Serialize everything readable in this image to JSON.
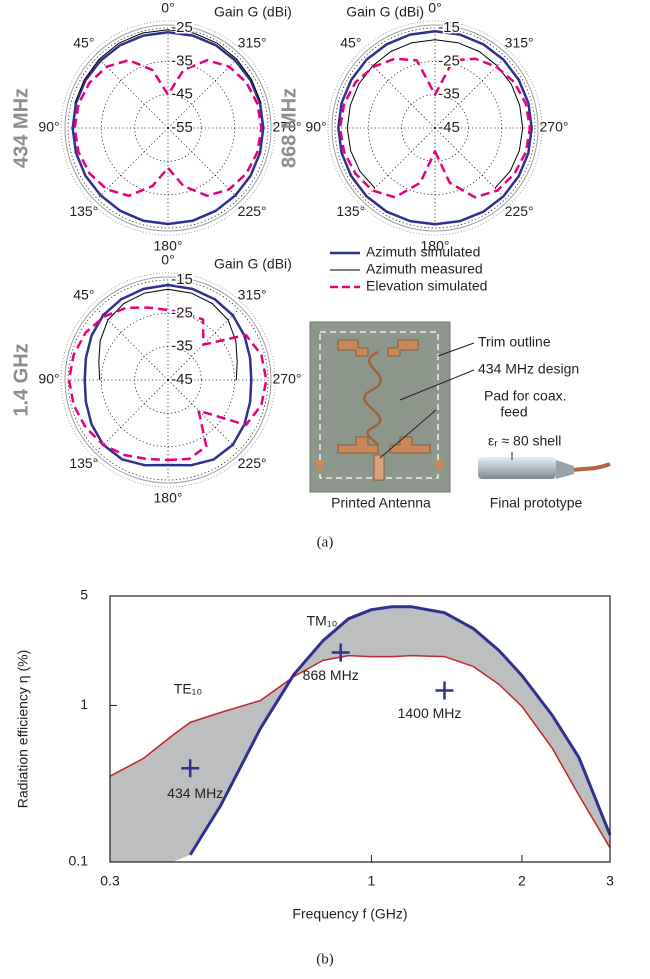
{
  "chart_data": [
    {
      "type": "polar",
      "title": "434 MHz",
      "r_label": "Gain G (dBi)",
      "theta": [
        180,
        195,
        210,
        225,
        240,
        255,
        270,
        285,
        300,
        315,
        330,
        345,
        0,
        15,
        30,
        45,
        60,
        75,
        90,
        105,
        120,
        135,
        150,
        165
      ],
      "rlim": [
        -55,
        -25
      ],
      "rticks": [
        -25,
        -35,
        -45,
        -55
      ],
      "thetaticks": [
        {
          "value": 0,
          "label": "0°"
        },
        {
          "value": 45,
          "label": "45°"
        },
        {
          "value": 90,
          "label": "90°"
        },
        {
          "value": 135,
          "label": "135°"
        },
        {
          "value": 180,
          "label": "180°"
        },
        {
          "value": 225,
          "label": "225°"
        },
        {
          "value": 270,
          "label": "270°"
        },
        {
          "value": 315,
          "label": "315°"
        }
      ],
      "series": [
        {
          "name": "Azimuth simulated",
          "color": "#2e3192",
          "width": 2.5,
          "dash": false,
          "values": [
            -26.2,
            -26.2,
            -26.3,
            -26.4,
            -26.4,
            -26.4,
            -26.4,
            -26.4,
            -26.4,
            -26.4,
            -26.3,
            -26.3,
            -26.3,
            -26.3,
            -26.3,
            -26.4,
            -26.4,
            -26.4,
            -26.4,
            -26.4,
            -26.4,
            -26.4,
            -26.3,
            -26.2
          ]
        },
        {
          "name": "Azimuth measured",
          "color": "#000000",
          "width": 1,
          "dash": false,
          "values": [
            null,
            null,
            null,
            null,
            null,
            null,
            null,
            -26.1,
            -26.0,
            -25.8,
            -25.6,
            -25.5,
            -25.5,
            -25.5,
            -25.6,
            -25.8,
            -26.0,
            -26.1,
            null,
            null,
            null,
            null,
            null,
            null
          ]
        },
        {
          "name": "Elevation simulated",
          "color": "#e6007e",
          "width": 2.5,
          "dash": true,
          "values": [
            -43,
            -37,
            -31.5,
            -29,
            -27.8,
            -27.2,
            -27,
            -27.2,
            -27.8,
            -29,
            -31.5,
            -37,
            -45,
            -37,
            -31.5,
            -29,
            -27.8,
            -27.2,
            -27,
            -27.2,
            -27.8,
            -29,
            -31.5,
            -37
          ]
        }
      ]
    },
    {
      "type": "polar",
      "title": "868 MHz",
      "r_label": "Gain G (dBi)",
      "theta": [
        180,
        195,
        210,
        225,
        240,
        255,
        270,
        285,
        300,
        315,
        330,
        345,
        0,
        15,
        30,
        45,
        60,
        75,
        90,
        105,
        120,
        135,
        150,
        165
      ],
      "rlim": [
        -45,
        -15
      ],
      "rticks": [
        -15,
        -25,
        -35,
        -45
      ],
      "thetaticks": [
        {
          "value": 0,
          "label": "0°"
        },
        {
          "value": 45,
          "label": "45°"
        },
        {
          "value": 90,
          "label": "90°"
        },
        {
          "value": 135,
          "label": "135°"
        },
        {
          "value": 180,
          "label": "180°"
        },
        {
          "value": 225,
          "label": "225°"
        },
        {
          "value": 270,
          "label": "270°"
        },
        {
          "value": 315,
          "label": "315°"
        }
      ],
      "series": [
        {
          "color": "#2e3192",
          "width": 2.5,
          "dash": false,
          "values": [
            -16.1,
            -16.1,
            -16.0,
            -16.0,
            -16.0,
            -16.0,
            -16.0,
            -16.0,
            -16.0,
            -16.0,
            -16.0,
            -16.0,
            -16.0,
            -16.0,
            -16.0,
            -16.0,
            -16.0,
            -16.0,
            -16.0,
            -16.0,
            -16.0,
            -16.0,
            -16.0,
            -16.1
          ]
        },
        {
          "color": "#000000",
          "width": 1,
          "dash": false,
          "values": [
            null,
            null,
            null,
            -19.5,
            -19,
            -18.8,
            -18.7,
            -18.7,
            -18.6,
            -18.6,
            -18.5,
            -18.5,
            -18.5,
            -18.5,
            -18.5,
            -18.6,
            -18.6,
            -18.7,
            -18.7,
            -18.8,
            -19,
            -19.5,
            null,
            null
          ]
        },
        {
          "color": "#e6007e",
          "width": 2.5,
          "dash": true,
          "values": [
            -38,
            -28,
            -21,
            -18.5,
            -17.5,
            -16.8,
            -16.5,
            -16.8,
            -17.5,
            -19,
            -21,
            -24,
            -35,
            -24,
            -21,
            -19,
            -17.5,
            -16.8,
            -16.5,
            -16.8,
            -17.5,
            -18.5,
            -21,
            -28
          ]
        }
      ]
    },
    {
      "type": "polar",
      "title": "1.4 GHz",
      "r_label": "Gain G (dBi)",
      "theta": [
        180,
        195,
        210,
        225,
        240,
        255,
        270,
        285,
        300,
        315,
        330,
        345,
        0,
        15,
        30,
        45,
        60,
        75,
        90,
        105,
        120,
        135,
        150,
        165
      ],
      "rlim": [
        -45,
        -15
      ],
      "rticks": [
        -15,
        -25,
        -35,
        -45
      ],
      "thetaticks": [
        {
          "value": 0,
          "label": "0°"
        },
        {
          "value": 45,
          "label": "45°"
        },
        {
          "value": 90,
          "label": "90°"
        },
        {
          "value": 135,
          "label": "135°"
        },
        {
          "value": 180,
          "label": "180°"
        },
        {
          "value": 225,
          "label": "225°"
        },
        {
          "value": 270,
          "label": "270°"
        },
        {
          "value": 315,
          "label": "315°"
        }
      ],
      "series": [
        {
          "color": "#2e3192",
          "width": 2.5,
          "dash": false,
          "values": [
            -19.5,
            -18.5,
            -17.5,
            -17.5,
            -18.5,
            -19.5,
            -20,
            -19.5,
            -18.5,
            -17.5,
            -17,
            -16.7,
            -16.5,
            -16.7,
            -17,
            -17.5,
            -18.5,
            -19.5,
            -20,
            -19.5,
            -18.5,
            -17.5,
            -17.5,
            -18.5
          ]
        },
        {
          "color": "#000000",
          "width": 1,
          "dash": false,
          "values": [
            null,
            null,
            null,
            null,
            null,
            null,
            -24.5,
            -23.5,
            -21.5,
            -19.5,
            -18.5,
            -18,
            -17.8,
            -18,
            -18.5,
            -19.5,
            -21.5,
            -23.5,
            -24.5,
            null,
            null,
            null,
            null,
            null
          ]
        },
        {
          "color": "#e6007e",
          "width": 2.5,
          "dash": true,
          "values": [
            -21,
            -20.5,
            -22,
            -32,
            -18,
            -16,
            -15.5,
            -16,
            -18,
            -30,
            -24,
            -24.5,
            -24,
            -22.5,
            -20,
            -18,
            -16.5,
            -15.7,
            -15.3,
            -15.7,
            -16.5,
            -17.5,
            -19,
            -20.5
          ]
        }
      ]
    },
    {
      "type": "line",
      "xscale": "log",
      "yscale": "log",
      "xlabel": "Frequency f (GHz)",
      "ylabel": "Radiation efficiency η (%)",
      "x": [
        0.3,
        0.35,
        0.4,
        0.434,
        0.5,
        0.6,
        0.7,
        0.8,
        0.9,
        1.0,
        1.1,
        1.2,
        1.4,
        1.6,
        1.8,
        2.0,
        2.3,
        2.6,
        3.0
      ],
      "xlim": [
        0.3,
        3
      ],
      "ylim": [
        0.1,
        5
      ],
      "xticks": [
        0.3,
        1,
        2,
        3
      ],
      "yticks": [
        0.1,
        1,
        5
      ],
      "fill_color": "#bcbec0",
      "series": [
        {
          "color": "#c1272d",
          "width": 1.5,
          "values": [
            0.353,
            0.459,
            0.644,
            0.779,
            0.902,
            1.076,
            1.53,
            1.94,
            2.08,
            2.05,
            2.05,
            2.08,
            2.05,
            1.77,
            1.36,
            0.985,
            0.532,
            0.267,
            0.123
          ]
        },
        {
          "color": "#2e3192",
          "width": 3,
          "values": [
            null,
            null,
            null,
            0.111,
            0.231,
            0.714,
            1.58,
            2.59,
            3.58,
            4.09,
            4.27,
            4.27,
            3.91,
            3.09,
            2.24,
            1.55,
            0.864,
            0.466,
            0.149
          ]
        }
      ],
      "annotations": [
        "TE₁₀",
        "TM₁₀"
      ],
      "markers": {
        "color": "#2e3192",
        "x": [
          0.434,
          0.868,
          1.4
        ],
        "values": [
          0.397,
          2.18,
          1.246
        ],
        "labels": [
          "434 MHz",
          "868 MHz",
          "1400 MHz"
        ]
      }
    }
  ],
  "photo": {
    "trim": "Trim outline",
    "design": "434 MHz design",
    "pad": [
      "Pad for coax.",
      "feed"
    ],
    "shell": "εᵣ ≈ 80 shell",
    "left_caption": "Printed Antenna",
    "right_caption": "Final prototype"
  },
  "captions": [
    "(a)",
    "(b)"
  ]
}
